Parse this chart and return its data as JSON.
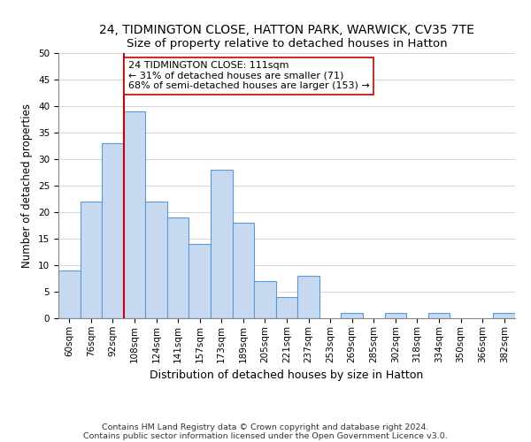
{
  "title": "24, TIDMINGTON CLOSE, HATTON PARK, WARWICK, CV35 7TE",
  "subtitle": "Size of property relative to detached houses in Hatton",
  "xlabel": "Distribution of detached houses by size in Hatton",
  "ylabel": "Number of detached properties",
  "bin_labels": [
    "60sqm",
    "76sqm",
    "92sqm",
    "108sqm",
    "124sqm",
    "141sqm",
    "157sqm",
    "173sqm",
    "189sqm",
    "205sqm",
    "221sqm",
    "237sqm",
    "253sqm",
    "269sqm",
    "285sqm",
    "302sqm",
    "318sqm",
    "334sqm",
    "350sqm",
    "366sqm",
    "382sqm"
  ],
  "bar_values": [
    9,
    22,
    33,
    39,
    22,
    19,
    14,
    28,
    18,
    7,
    4,
    8,
    0,
    1,
    0,
    1,
    0,
    1,
    0,
    0,
    1
  ],
  "bar_color": "#c6d9f0",
  "bar_edge_color": "#5b9bd5",
  "vline_x_index": 3,
  "vline_color": "#cc0000",
  "annotation_text": "24 TIDMINGTON CLOSE: 111sqm\n← 31% of detached houses are smaller (71)\n68% of semi-detached houses are larger (153) →",
  "annotation_box_color": "#ffffff",
  "annotation_box_edge": "#cc0000",
  "ylim": [
    0,
    50
  ],
  "yticks": [
    0,
    5,
    10,
    15,
    20,
    25,
    30,
    35,
    40,
    45,
    50
  ],
  "footer_line1": "Contains HM Land Registry data © Crown copyright and database right 2024.",
  "footer_line2": "Contains public sector information licensed under the Open Government Licence v3.0.",
  "title_fontsize": 10,
  "subtitle_fontsize": 9.5,
  "xlabel_fontsize": 9,
  "ylabel_fontsize": 8.5,
  "tick_fontsize": 7.5,
  "footer_fontsize": 6.8,
  "annotation_fontsize": 8
}
